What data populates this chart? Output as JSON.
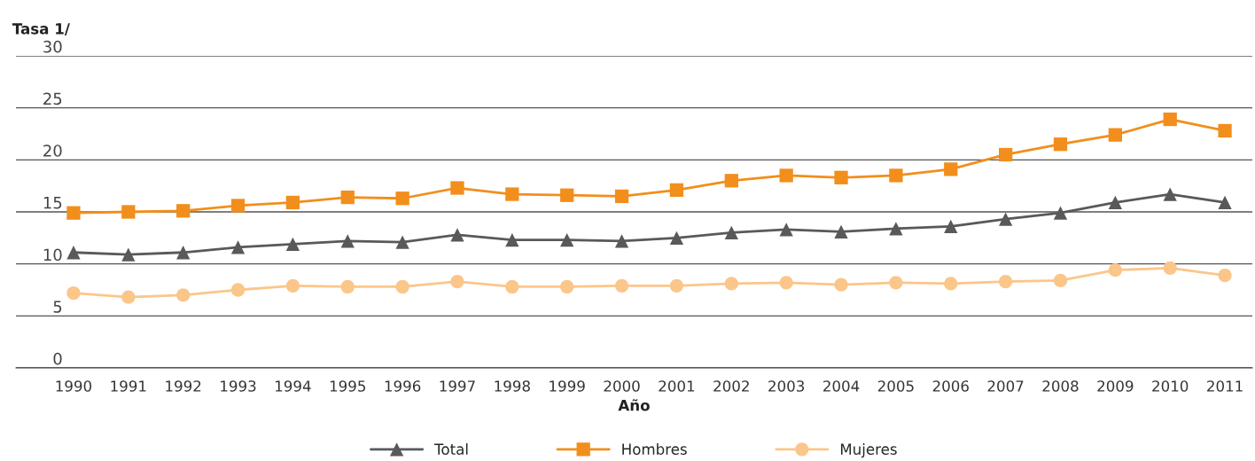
{
  "chart_data": {
    "type": "line",
    "xlabel": "Año",
    "ylabel": "Tasa 1/",
    "categories": [
      "1990",
      "1991",
      "1992",
      "1993",
      "1994",
      "1995",
      "1996",
      "1997",
      "1998",
      "1999",
      "2000",
      "2001",
      "2002",
      "2003",
      "2004",
      "2005",
      "2006",
      "2007",
      "2008",
      "2009",
      "2010",
      "2011"
    ],
    "ylim": [
      0,
      30
    ],
    "yticks": [
      0,
      5,
      10,
      15,
      20,
      25,
      30
    ],
    "grid": "y",
    "legend": "bottom",
    "series": [
      {
        "name": "Total",
        "color": "#58595b",
        "marker": "triangle",
        "values": [
          11.1,
          10.9,
          11.1,
          11.6,
          11.9,
          12.2,
          12.1,
          12.8,
          12.3,
          12.3,
          12.2,
          12.5,
          13.0,
          13.3,
          13.1,
          13.4,
          13.6,
          14.3,
          14.9,
          15.9,
          16.7,
          15.9
        ]
      },
      {
        "name": "Hombres",
        "color": "#f28e1c",
        "marker": "square",
        "values": [
          14.9,
          15.0,
          15.1,
          15.6,
          15.9,
          16.4,
          16.3,
          17.3,
          16.7,
          16.6,
          16.5,
          17.1,
          18.0,
          18.5,
          18.3,
          18.5,
          19.1,
          20.5,
          21.5,
          22.4,
          23.9,
          22.8
        ]
      },
      {
        "name": "Mujeres",
        "color": "#fbc68a",
        "marker": "circle",
        "values": [
          7.2,
          6.8,
          7.0,
          7.5,
          7.9,
          7.8,
          7.8,
          8.3,
          7.8,
          7.8,
          7.9,
          7.9,
          8.1,
          8.2,
          8.0,
          8.2,
          8.1,
          8.3,
          8.4,
          9.4,
          9.6,
          8.9
        ]
      }
    ]
  }
}
